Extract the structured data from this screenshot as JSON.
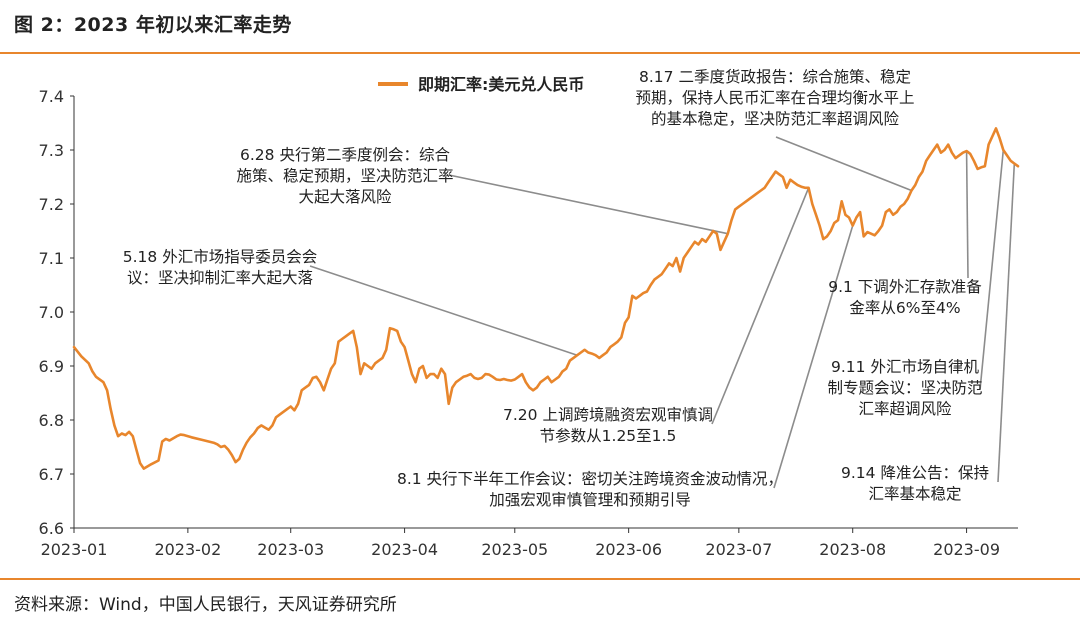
{
  "header": {
    "title": "图 2：2023 年初以来汇率走势"
  },
  "footer": {
    "source": "资料来源：Wind，中国人民银行，天风证券研究所"
  },
  "chart_data": {
    "type": "line",
    "series": [
      {
        "name": "即期汇率:美元兑人民币",
        "color": "#e8862c"
      }
    ],
    "legend_position": "top-center",
    "grid": false,
    "ylim": [
      6.6,
      7.4
    ],
    "y_ticks": [
      "6.6",
      "6.7",
      "6.8",
      "6.9",
      "7.0",
      "7.1",
      "7.2",
      "7.3",
      "7.4"
    ],
    "x_ticks": [
      "2023-01",
      "2023-02",
      "2023-03",
      "2023-04",
      "2023-05",
      "2023-06",
      "2023-07",
      "2023-08",
      "2023-09"
    ],
    "x_tick_values": [
      "2023-01-01",
      "2023-02-01",
      "2023-03-01",
      "2023-04-01",
      "2023-05-01",
      "2023-06-01",
      "2023-07-01",
      "2023-08-01",
      "2023-09-01"
    ],
    "xlim": [
      "2023-01-01",
      "2023-09-15"
    ],
    "points": [
      [
        "2023-01-01",
        6.935
      ],
      [
        "2023-01-03",
        6.918
      ],
      [
        "2023-01-05",
        6.905
      ],
      [
        "2023-01-06",
        6.89
      ],
      [
        "2023-01-07",
        6.88
      ],
      [
        "2023-01-09",
        6.87
      ],
      [
        "2023-01-10",
        6.855
      ],
      [
        "2023-01-11",
        6.82
      ],
      [
        "2023-01-12",
        6.79
      ],
      [
        "2023-01-13",
        6.77
      ],
      [
        "2023-01-14",
        6.775
      ],
      [
        "2023-01-15",
        6.772
      ],
      [
        "2023-01-16",
        6.778
      ],
      [
        "2023-01-17",
        6.77
      ],
      [
        "2023-01-18",
        6.745
      ],
      [
        "2023-01-19",
        6.72
      ],
      [
        "2023-01-20",
        6.71
      ],
      [
        "2023-01-22",
        6.718
      ],
      [
        "2023-01-24",
        6.725
      ],
      [
        "2023-01-25",
        6.76
      ],
      [
        "2023-01-26",
        6.765
      ],
      [
        "2023-01-27",
        6.762
      ],
      [
        "2023-01-29",
        6.77
      ],
      [
        "2023-01-30",
        6.773
      ],
      [
        "2023-01-31",
        6.772
      ],
      [
        "2023-02-02",
        6.768
      ],
      [
        "2023-02-05",
        6.763
      ],
      [
        "2023-02-08",
        6.758
      ],
      [
        "2023-02-09",
        6.755
      ],
      [
        "2023-02-10",
        6.75
      ],
      [
        "2023-02-11",
        6.752
      ],
      [
        "2023-02-12",
        6.745
      ],
      [
        "2023-02-13",
        6.735
      ],
      [
        "2023-02-14",
        6.722
      ],
      [
        "2023-02-15",
        6.728
      ],
      [
        "2023-02-16",
        6.745
      ],
      [
        "2023-02-17",
        6.758
      ],
      [
        "2023-02-18",
        6.768
      ],
      [
        "2023-02-19",
        6.775
      ],
      [
        "2023-02-20",
        6.785
      ],
      [
        "2023-02-21",
        6.79
      ],
      [
        "2023-02-22",
        6.786
      ],
      [
        "2023-02-23",
        6.782
      ],
      [
        "2023-02-24",
        6.79
      ],
      [
        "2023-02-25",
        6.805
      ],
      [
        "2023-02-26",
        6.81
      ],
      [
        "2023-02-28",
        6.82
      ],
      [
        "2023-03-01",
        6.825
      ],
      [
        "2023-03-02",
        6.818
      ],
      [
        "2023-03-03",
        6.83
      ],
      [
        "2023-03-04",
        6.855
      ],
      [
        "2023-03-05",
        6.86
      ],
      [
        "2023-03-06",
        6.865
      ],
      [
        "2023-03-07",
        6.878
      ],
      [
        "2023-03-08",
        6.88
      ],
      [
        "2023-03-09",
        6.87
      ],
      [
        "2023-03-10",
        6.855
      ],
      [
        "2023-03-11",
        6.875
      ],
      [
        "2023-03-12",
        6.895
      ],
      [
        "2023-03-13",
        6.905
      ],
      [
        "2023-03-14",
        6.945
      ],
      [
        "2023-03-15",
        6.95
      ],
      [
        "2023-03-16",
        6.955
      ],
      [
        "2023-03-17",
        6.96
      ],
      [
        "2023-03-18",
        6.965
      ],
      [
        "2023-03-19",
        6.935
      ],
      [
        "2023-03-20",
        6.885
      ],
      [
        "2023-03-21",
        6.905
      ],
      [
        "2023-03-22",
        6.9
      ],
      [
        "2023-03-23",
        6.895
      ],
      [
        "2023-03-24",
        6.905
      ],
      [
        "2023-03-25",
        6.91
      ],
      [
        "2023-03-26",
        6.915
      ],
      [
        "2023-03-27",
        6.93
      ],
      [
        "2023-03-28",
        6.97
      ],
      [
        "2023-03-29",
        6.968
      ],
      [
        "2023-03-30",
        6.965
      ],
      [
        "2023-03-31",
        6.945
      ],
      [
        "2023-04-01",
        6.935
      ],
      [
        "2023-04-02",
        6.91
      ],
      [
        "2023-04-03",
        6.885
      ],
      [
        "2023-04-04",
        6.87
      ],
      [
        "2023-04-05",
        6.895
      ],
      [
        "2023-04-06",
        6.9
      ],
      [
        "2023-04-07",
        6.878
      ],
      [
        "2023-04-08",
        6.885
      ],
      [
        "2023-04-09",
        6.885
      ],
      [
        "2023-04-10",
        6.878
      ],
      [
        "2023-04-11",
        6.895
      ],
      [
        "2023-04-12",
        6.885
      ],
      [
        "2023-04-13",
        6.83
      ],
      [
        "2023-04-14",
        6.86
      ],
      [
        "2023-04-15",
        6.87
      ],
      [
        "2023-04-16",
        6.875
      ],
      [
        "2023-04-17",
        6.88
      ],
      [
        "2023-04-18",
        6.882
      ],
      [
        "2023-04-19",
        6.885
      ],
      [
        "2023-04-20",
        6.878
      ],
      [
        "2023-04-21",
        6.876
      ],
      [
        "2023-04-22",
        6.878
      ],
      [
        "2023-04-23",
        6.885
      ],
      [
        "2023-04-24",
        6.884
      ],
      [
        "2023-04-25",
        6.88
      ],
      [
        "2023-04-26",
        6.875
      ],
      [
        "2023-04-27",
        6.874
      ],
      [
        "2023-04-28",
        6.876
      ],
      [
        "2023-04-29",
        6.874
      ],
      [
        "2023-04-30",
        6.873
      ],
      [
        "2023-05-01",
        6.875
      ],
      [
        "2023-05-02",
        6.88
      ],
      [
        "2023-05-03",
        6.885
      ],
      [
        "2023-05-04",
        6.87
      ],
      [
        "2023-05-05",
        6.86
      ],
      [
        "2023-05-06",
        6.855
      ],
      [
        "2023-05-07",
        6.86
      ],
      [
        "2023-05-08",
        6.87
      ],
      [
        "2023-05-09",
        6.875
      ],
      [
        "2023-05-10",
        6.88
      ],
      [
        "2023-05-11",
        6.87
      ],
      [
        "2023-05-12",
        6.875
      ],
      [
        "2023-05-13",
        6.88
      ],
      [
        "2023-05-14",
        6.89
      ],
      [
        "2023-05-15",
        6.895
      ],
      [
        "2023-05-16",
        6.91
      ],
      [
        "2023-05-17",
        6.915
      ],
      [
        "2023-05-18",
        6.92
      ],
      [
        "2023-05-19",
        6.925
      ],
      [
        "2023-05-20",
        6.93
      ],
      [
        "2023-05-21",
        6.925
      ],
      [
        "2023-05-22",
        6.923
      ],
      [
        "2023-05-23",
        6.92
      ],
      [
        "2023-05-24",
        6.915
      ],
      [
        "2023-05-25",
        6.92
      ],
      [
        "2023-05-26",
        6.925
      ],
      [
        "2023-05-27",
        6.935
      ],
      [
        "2023-05-28",
        6.94
      ],
      [
        "2023-05-29",
        6.945
      ],
      [
        "2023-05-30",
        6.953
      ],
      [
        "2023-05-31",
        6.98
      ],
      [
        "2023-06-01",
        6.99
      ],
      [
        "2023-06-02",
        7.03
      ],
      [
        "2023-06-03",
        7.025
      ],
      [
        "2023-06-04",
        7.03
      ],
      [
        "2023-06-05",
        7.035
      ],
      [
        "2023-06-06",
        7.038
      ],
      [
        "2023-06-07",
        7.05
      ],
      [
        "2023-06-08",
        7.06
      ],
      [
        "2023-06-09",
        7.065
      ],
      [
        "2023-06-10",
        7.07
      ],
      [
        "2023-06-11",
        7.08
      ],
      [
        "2023-06-12",
        7.09
      ],
      [
        "2023-06-13",
        7.085
      ],
      [
        "2023-06-14",
        7.1
      ],
      [
        "2023-06-15",
        7.075
      ],
      [
        "2023-06-16",
        7.1
      ],
      [
        "2023-06-17",
        7.11
      ],
      [
        "2023-06-18",
        7.12
      ],
      [
        "2023-06-19",
        7.13
      ],
      [
        "2023-06-20",
        7.125
      ],
      [
        "2023-06-21",
        7.135
      ],
      [
        "2023-06-22",
        7.13
      ],
      [
        "2023-06-23",
        7.14
      ],
      [
        "2023-06-24",
        7.15
      ],
      [
        "2023-06-25",
        7.145
      ],
      [
        "2023-06-26",
        7.115
      ],
      [
        "2023-06-27",
        7.13
      ],
      [
        "2023-06-28",
        7.145
      ],
      [
        "2023-06-29",
        7.17
      ],
      [
        "2023-06-30",
        7.19
      ],
      [
        "2023-07-01",
        7.195
      ],
      [
        "2023-07-02",
        7.2
      ],
      [
        "2023-07-03",
        7.205
      ],
      [
        "2023-07-04",
        7.21
      ],
      [
        "2023-07-05",
        7.215
      ],
      [
        "2023-07-06",
        7.22
      ],
      [
        "2023-07-07",
        7.225
      ],
      [
        "2023-07-08",
        7.23
      ],
      [
        "2023-07-09",
        7.24
      ],
      [
        "2023-07-10",
        7.25
      ],
      [
        "2023-07-11",
        7.26
      ],
      [
        "2023-07-12",
        7.255
      ],
      [
        "2023-07-13",
        7.25
      ],
      [
        "2023-07-14",
        7.23
      ],
      [
        "2023-07-15",
        7.245
      ],
      [
        "2023-07-16",
        7.24
      ],
      [
        "2023-07-17",
        7.235
      ],
      [
        "2023-07-18",
        7.232
      ],
      [
        "2023-07-19",
        7.23
      ],
      [
        "2023-07-20",
        7.23
      ],
      [
        "2023-07-21",
        7.2
      ],
      [
        "2023-07-22",
        7.18
      ],
      [
        "2023-07-23",
        7.16
      ],
      [
        "2023-07-24",
        7.135
      ],
      [
        "2023-07-25",
        7.14
      ],
      [
        "2023-07-26",
        7.15
      ],
      [
        "2023-07-27",
        7.165
      ],
      [
        "2023-07-28",
        7.17
      ],
      [
        "2023-07-29",
        7.205
      ],
      [
        "2023-07-30",
        7.18
      ],
      [
        "2023-07-31",
        7.175
      ],
      [
        "2023-08-01",
        7.16
      ],
      [
        "2023-08-02",
        7.175
      ],
      [
        "2023-08-03",
        7.185
      ],
      [
        "2023-08-04",
        7.14
      ],
      [
        "2023-08-05",
        7.148
      ],
      [
        "2023-08-06",
        7.145
      ],
      [
        "2023-08-07",
        7.142
      ],
      [
        "2023-08-08",
        7.15
      ],
      [
        "2023-08-09",
        7.16
      ],
      [
        "2023-08-10",
        7.185
      ],
      [
        "2023-08-11",
        7.19
      ],
      [
        "2023-08-12",
        7.18
      ],
      [
        "2023-08-13",
        7.185
      ],
      [
        "2023-08-14",
        7.195
      ],
      [
        "2023-08-15",
        7.2
      ],
      [
        "2023-08-16",
        7.21
      ],
      [
        "2023-08-17",
        7.225
      ],
      [
        "2023-08-18",
        7.235
      ],
      [
        "2023-08-19",
        7.25
      ],
      [
        "2023-08-20",
        7.26
      ],
      [
        "2023-08-21",
        7.28
      ],
      [
        "2023-08-22",
        7.29
      ],
      [
        "2023-08-23",
        7.3
      ],
      [
        "2023-08-24",
        7.31
      ],
      [
        "2023-08-25",
        7.295
      ],
      [
        "2023-08-26",
        7.3
      ],
      [
        "2023-08-27",
        7.31
      ],
      [
        "2023-08-28",
        7.295
      ],
      [
        "2023-08-29",
        7.285
      ],
      [
        "2023-08-30",
        7.29
      ],
      [
        "2023-08-31",
        7.295
      ],
      [
        "2023-09-01",
        7.298
      ],
      [
        "2023-09-02",
        7.293
      ],
      [
        "2023-09-03",
        7.28
      ],
      [
        "2023-09-04",
        7.265
      ],
      [
        "2023-09-05",
        7.268
      ],
      [
        "2023-09-06",
        7.27
      ],
      [
        "2023-09-07",
        7.31
      ],
      [
        "2023-09-08",
        7.325
      ],
      [
        "2023-09-09",
        7.34
      ],
      [
        "2023-09-10",
        7.322
      ],
      [
        "2023-09-11",
        7.3
      ],
      [
        "2023-09-12",
        7.29
      ],
      [
        "2023-09-13",
        7.28
      ],
      [
        "2023-09-14",
        7.275
      ],
      [
        "2023-09-15",
        7.27
      ]
    ],
    "annotations": [
      {
        "date": "2023-05-18",
        "lines": [
          "5.18 外汇市场指导委员会会",
          "议：坚决抑制汇率大起大落"
        ]
      },
      {
        "date": "2023-06-28",
        "lines": [
          "6.28 央行第二季度例会：综合",
          "施策、稳定预期，坚决防范汇率",
          "大起大落风险"
        ]
      },
      {
        "date": "2023-07-20",
        "lines": [
          "7.20 上调跨境融资宏观审慎调",
          "节参数从1.25至1.5"
        ]
      },
      {
        "date": "2023-08-01",
        "lines": [
          "8.1 央行下半年工作会议：密切关注跨境资金波动情况，",
          "加强宏观审慎管理和预期引导"
        ]
      },
      {
        "date": "2023-08-17",
        "lines": [
          "8.17 二季度货政报告：综合施策、稳定",
          "预期，保持人民币汇率在合理均衡水平上",
          "的基本稳定，坚决防范汇率超调风险"
        ]
      },
      {
        "date": "2023-09-01",
        "lines": [
          "9.1 下调外汇存款准备",
          "金率从6%至4%"
        ]
      },
      {
        "date": "2023-09-11",
        "lines": [
          "9.11 外汇市场自律机",
          "制专题会议：坚决防范",
          "汇率超调风险"
        ]
      },
      {
        "date": "2023-09-14",
        "lines": [
          "9.14 降准公告：保持",
          "汇率基本稳定"
        ]
      }
    ]
  }
}
